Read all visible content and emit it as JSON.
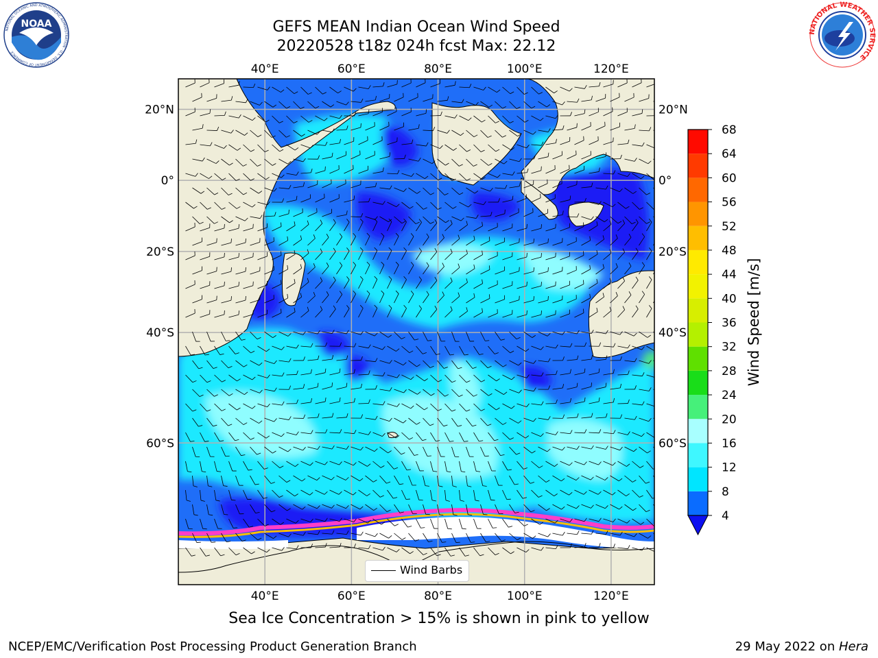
{
  "title_line1": "GEFS MEAN Indian Ocean Wind Speed",
  "title_line2": "20220528 t18z 024h fcst   Max: 22.12",
  "caption": "Sea Ice Concentration > 15% is shown in pink to yellow",
  "footer_left": "NCEP/EMC/Verification Post Processing Product Generation Branch",
  "footer_right_prefix": "29 May 2022 on ",
  "footer_right_host": "Hera",
  "legend_label": "Wind Barbs",
  "colorbar_label": "Wind Speed [m/s]",
  "noaa_logo_text": "NOAA",
  "noaa_ring_text": "NATIONAL OCEANIC AND ATMOSPHERIC ADMINISTRATION · U.S. DEPARTMENT OF COMMERCE",
  "nws_ring_text": "NATIONAL WEATHER SERVICE",
  "map": {
    "lon_ticks": [
      {
        "lon": 40,
        "label": "40°E"
      },
      {
        "lon": 60,
        "label": "60°E"
      },
      {
        "lon": 80,
        "label": "80°E"
      },
      {
        "lon": 100,
        "label": "100°E"
      },
      {
        "lon": 120,
        "label": "120°E"
      }
    ],
    "lat_ticks": [
      {
        "lat": 20,
        "label": "20°N"
      },
      {
        "lat": 0,
        "label": "0°"
      },
      {
        "lat": -20,
        "label": "20°S"
      },
      {
        "lat": -40,
        "label": "40°S"
      },
      {
        "lat": -60,
        "label": "60°S"
      }
    ],
    "lon_range": [
      20,
      130
    ],
    "lat_range": [
      -75,
      28
    ]
  },
  "colorbar": {
    "levels": [
      4,
      8,
      12,
      16,
      20,
      24,
      28,
      32,
      36,
      40,
      44,
      48,
      52,
      56,
      60,
      64,
      68
    ],
    "colors": [
      "#0a6cff",
      "#00e5ff",
      "#3ff7ff",
      "#a8ffff",
      "#46f07a",
      "#19dd19",
      "#5fe000",
      "#b4f000",
      "#d7ee00",
      "#f2f200",
      "#ffea00",
      "#ffbe00",
      "#ff9500",
      "#ff6800",
      "#ff3a00",
      "#ff0a00"
    ],
    "extend_color": "#0d10f0"
  },
  "colors": {
    "land": "#efedd9",
    "ice": "#ffffff",
    "deep_blue": "#1a1af5",
    "mid_blue": "#1f6ef8",
    "cyan": "#1de9ff",
    "light_cyan": "#8ffdff",
    "green": "#4fe28a"
  }
}
